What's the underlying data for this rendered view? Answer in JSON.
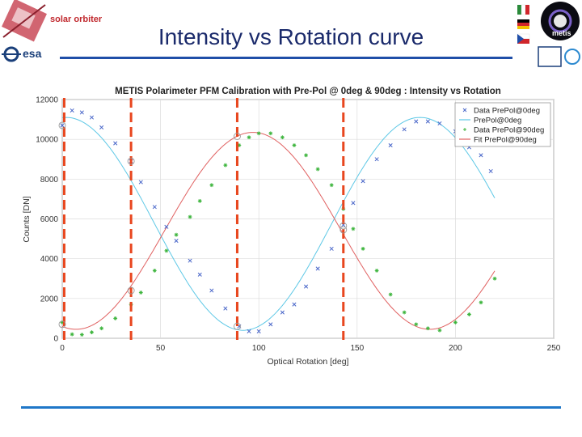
{
  "slide": {
    "title": "Intensity vs Rotation curve",
    "logo_left_text": "solar orbiter",
    "logo_esa_text": "esa",
    "logo_metis_text": "metis"
  },
  "chart_data": {
    "type": "scatter",
    "title": "METIS Polarimeter PFM Calibration with Pre-Pol @ 0deg & 90deg :  Intensity vs Rotation",
    "xlabel": "Optical Rotation [deg]",
    "ylabel": "Counts [DN]",
    "xlim": [
      0,
      250
    ],
    "ylim": [
      0,
      12000
    ],
    "xticks": [
      0,
      50,
      100,
      150,
      200,
      250
    ],
    "yticks": [
      0,
      2000,
      4000,
      6000,
      8000,
      10000,
      12000
    ],
    "grid": true,
    "legend_position": "top-right",
    "legend": [
      "Data PrePol@0deg",
      "PrePol@0deg",
      "Data PrePol@90deg",
      "Fit PrePol@90deg"
    ],
    "series": [
      {
        "name": "Data PrePol@0deg",
        "kind": "markers",
        "marker": "x",
        "color": "#4a67c9",
        "points": [
          [
            0,
            10700
          ],
          [
            5,
            11450
          ],
          [
            10,
            11350
          ],
          [
            15,
            11100
          ],
          [
            20,
            10600
          ],
          [
            27,
            9800
          ],
          [
            35,
            8900
          ],
          [
            40,
            7850
          ],
          [
            47,
            6600
          ],
          [
            53,
            5600
          ],
          [
            58,
            4900
          ],
          [
            65,
            3900
          ],
          [
            70,
            3200
          ],
          [
            76,
            2400
          ],
          [
            83,
            1500
          ],
          [
            90,
            600
          ],
          [
            95,
            350
          ],
          [
            100,
            350
          ],
          [
            106,
            700
          ],
          [
            112,
            1300
          ],
          [
            118,
            1700
          ],
          [
            124,
            2600
          ],
          [
            130,
            3500
          ],
          [
            137,
            4500
          ],
          [
            143,
            5700
          ],
          [
            148,
            6800
          ],
          [
            153,
            7900
          ],
          [
            160,
            9000
          ],
          [
            167,
            9700
          ],
          [
            174,
            10500
          ],
          [
            180,
            10900
          ],
          [
            186,
            10900
          ],
          [
            192,
            10800
          ],
          [
            200,
            10400
          ],
          [
            207,
            9600
          ],
          [
            213,
            9200
          ],
          [
            218,
            8400
          ]
        ]
      },
      {
        "name": "PrePol@0deg",
        "kind": "line",
        "color": "#5ec8e6",
        "amplitude": 5350,
        "offset": 5750,
        "phase_deg": 2,
        "x_range": [
          0,
          220
        ]
      },
      {
        "name": "Data PrePol@90deg",
        "kind": "markers",
        "marker": "*",
        "color": "#3cb43c",
        "points": [
          [
            0,
            800
          ],
          [
            5,
            200
          ],
          [
            10,
            180
          ],
          [
            15,
            300
          ],
          [
            20,
            500
          ],
          [
            27,
            1000
          ],
          [
            35,
            1700
          ],
          [
            40,
            2300
          ],
          [
            47,
            3400
          ],
          [
            53,
            4400
          ],
          [
            58,
            5200
          ],
          [
            65,
            6100
          ],
          [
            70,
            6900
          ],
          [
            76,
            7700
          ],
          [
            83,
            8700
          ],
          [
            90,
            9700
          ],
          [
            95,
            10100
          ],
          [
            100,
            10300
          ],
          [
            106,
            10300
          ],
          [
            112,
            10100
          ],
          [
            118,
            9700
          ],
          [
            124,
            9200
          ],
          [
            130,
            8500
          ],
          [
            137,
            7700
          ],
          [
            143,
            6500
          ],
          [
            148,
            5500
          ],
          [
            153,
            4500
          ],
          [
            160,
            3400
          ],
          [
            167,
            2200
          ],
          [
            174,
            1300
          ],
          [
            180,
            700
          ],
          [
            186,
            500
          ],
          [
            192,
            400
          ],
          [
            200,
            800
          ],
          [
            207,
            1200
          ],
          [
            213,
            1800
          ],
          [
            220,
            3000
          ]
        ]
      },
      {
        "name": "Fit PrePol@90deg",
        "kind": "line",
        "color": "#e06060",
        "amplitude": 4950,
        "offset": 5400,
        "phase_deg": 97,
        "x_range": [
          0,
          220
        ]
      }
    ],
    "annotations": {
      "vertical_dashed_lines_x": [
        1,
        35,
        89,
        143
      ],
      "vertical_line_color": "#e8461e",
      "circled_points": [
        [
          0,
          10700
        ],
        [
          35,
          8900
        ],
        [
          0,
          700
        ],
        [
          35,
          2400
        ],
        [
          89,
          600
        ],
        [
          89,
          10150
        ],
        [
          143,
          5650
        ],
        [
          143,
          5450
        ]
      ]
    }
  }
}
